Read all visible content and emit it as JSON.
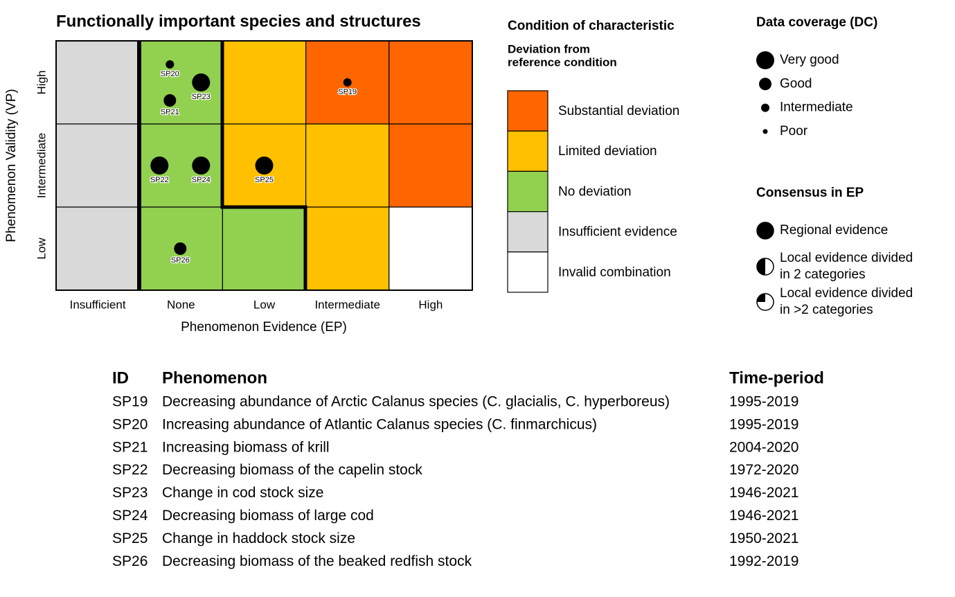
{
  "title": "Functionally important species and structures",
  "x_axis": {
    "label": "Phenomenon Evidence (EP)",
    "categories": [
      "Insufficient",
      "None",
      "Low",
      "Intermediate",
      "High"
    ]
  },
  "y_axis": {
    "label": "Phenomenon Validity (VP)",
    "categories": [
      "High",
      "Intermediate",
      "Low"
    ]
  },
  "cells": [
    [
      "#d9d9d9",
      "#92d050",
      "#ffc000",
      "#ff6600",
      "#ff6600"
    ],
    [
      "#d9d9d9",
      "#92d050",
      "#ffc000",
      "#ffc000",
      "#ff6600"
    ],
    [
      "#d9d9d9",
      "#92d050",
      "#92d050",
      "#ffc000",
      "#ffffff"
    ]
  ],
  "points": [
    {
      "id": "SP20",
      "ep": "None",
      "vp": "High",
      "dc": "Intermediate"
    },
    {
      "id": "SP21",
      "ep": "None",
      "vp": "High",
      "dc": "Good"
    },
    {
      "id": "SP23",
      "ep": "None",
      "vp": "High",
      "dc": "Very good"
    },
    {
      "id": "SP19",
      "ep": "Intermediate",
      "vp": "High",
      "dc": "Intermediate"
    },
    {
      "id": "SP22",
      "ep": "None",
      "vp": "Intermediate",
      "dc": "Very good"
    },
    {
      "id": "SP24",
      "ep": "None",
      "vp": "Intermediate",
      "dc": "Very good"
    },
    {
      "id": "SP25",
      "ep": "Low",
      "vp": "Intermediate",
      "dc": "Very good"
    },
    {
      "id": "SP26",
      "ep": "None",
      "vp": "Low",
      "dc": "Good"
    }
  ],
  "condition_legend": {
    "title": "Condition of characteristic",
    "subtitle": [
      "Deviation from",
      "reference condition"
    ],
    "items": [
      {
        "name": "Substantial deviation",
        "color": "#ff6600"
      },
      {
        "name": "Limited deviation",
        "color": "#ffc000"
      },
      {
        "name": "No deviation",
        "color": "#92d050"
      },
      {
        "name": "Insufficient evidence",
        "color": "#d9d9d9"
      },
      {
        "name": "Invalid combination",
        "color": "#ffffff"
      }
    ]
  },
  "coverage_legend": {
    "title": "Data coverage (DC)",
    "items": [
      "Very good",
      "Good",
      "Intermediate",
      "Poor"
    ]
  },
  "consensus_legend": {
    "title": "Consensus in EP",
    "items": [
      [
        "Regional evidence"
      ],
      [
        "Local evidence divided",
        "in 2 categories"
      ],
      [
        "Local evidence divided",
        "in >2 categories"
      ]
    ]
  },
  "table": {
    "header": [
      "ID",
      "Phenomenon",
      "Time-period"
    ],
    "rows": [
      [
        "SP19",
        "Decreasing abundance of Arctic Calanus species (C. glacialis, C. hyperboreus)",
        "1995-2019"
      ],
      [
        "SP20",
        "Increasing abundance of Atlantic Calanus species (C. finmarchicus)",
        "1995-2019"
      ],
      [
        "SP21",
        "Increasing biomass of krill",
        "2004-2020"
      ],
      [
        "SP22",
        "Decreasing biomass of the capelin stock",
        "1972-2020"
      ],
      [
        "SP23",
        "Change in cod stock size",
        "1946-2021"
      ],
      [
        "SP24",
        "Decreasing biomass of large cod",
        "1946-2021"
      ],
      [
        "SP25",
        "Change in haddock stock size",
        "1950-2021"
      ],
      [
        "SP26",
        "Decreasing biomass of the beaked redfish stock",
        "1992-2019"
      ]
    ]
  }
}
